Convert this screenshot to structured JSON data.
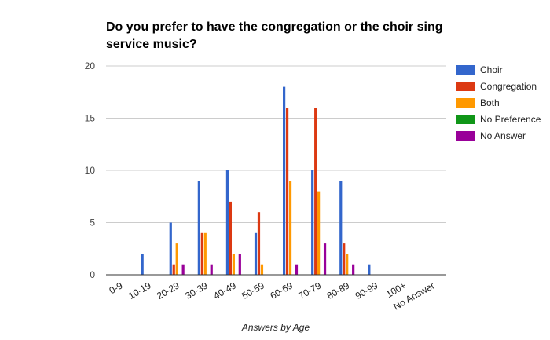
{
  "chart_data": {
    "type": "bar",
    "title_lines": [
      "Do you prefer to have the congregation or the choir sing",
      "service music?"
    ],
    "xlabel": "Answers by Age",
    "ylabel": "",
    "ylim": [
      0,
      20
    ],
    "yticks": [
      0,
      5,
      10,
      15,
      20
    ],
    "grid": true,
    "legend_position": "right",
    "categories": [
      "0-9",
      "10-19",
      "20-29",
      "30-39",
      "40-49",
      "50-59",
      "60-69",
      "70-79",
      "80-89",
      "90-99",
      "100+",
      "No Answer"
    ],
    "series": [
      {
        "name": "Choir",
        "color": "#3366cc",
        "values": [
          0,
          2,
          5,
          9,
          10,
          4,
          18,
          10,
          9,
          1,
          0,
          0
        ]
      },
      {
        "name": "Congregation",
        "color": "#dc3912",
        "values": [
          0,
          0,
          1,
          4,
          7,
          6,
          16,
          16,
          3,
          0,
          0,
          0
        ]
      },
      {
        "name": "Both",
        "color": "#ff9900",
        "values": [
          0,
          0,
          3,
          4,
          2,
          1,
          9,
          8,
          2,
          0,
          0,
          0
        ]
      },
      {
        "name": "No Preference",
        "color": "#109618",
        "values": [
          0,
          0,
          0,
          0,
          0,
          0,
          0,
          0,
          0,
          0,
          0,
          0
        ]
      },
      {
        "name": "No Answer",
        "color": "#990099",
        "values": [
          0,
          0,
          1,
          1,
          2,
          0,
          1,
          3,
          1,
          0,
          0,
          0
        ]
      }
    ]
  }
}
